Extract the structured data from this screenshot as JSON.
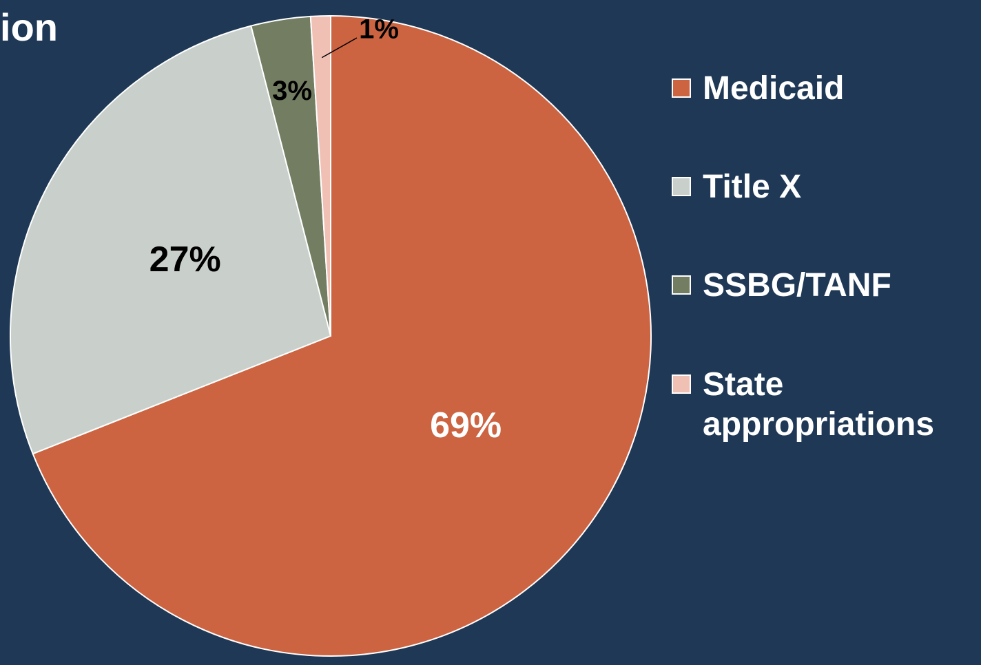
{
  "chart_data": {
    "type": "pie",
    "title": "ion",
    "categories": [
      "Medicaid",
      "Title X",
      "SSBG/TANF",
      "State appropriations"
    ],
    "values": [
      69,
      27,
      3,
      1
    ],
    "value_labels": [
      "69%",
      "27%",
      "3%",
      "1%"
    ],
    "colors": [
      "#cc6442",
      "#c9d0cb",
      "#727d61",
      "#f0c0b4"
    ],
    "label_colors": [
      "#ffffff",
      "#000000",
      "#000000",
      "#000000"
    ],
    "legend": "right"
  }
}
